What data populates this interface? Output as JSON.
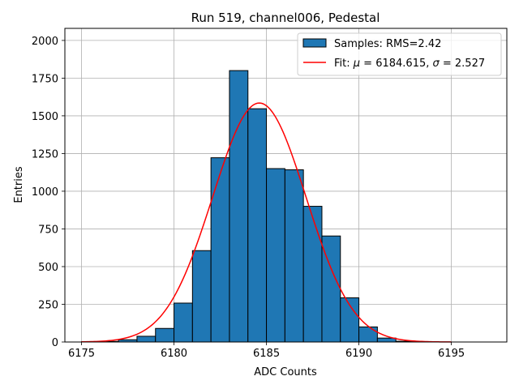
{
  "chart_data": {
    "type": "bar",
    "title": "Run 519, channel006, Pedestal",
    "xlabel": "ADC Counts",
    "ylabel": "Entries",
    "xlim": [
      6174.1,
      6198.0
    ],
    "ylim": [
      0,
      2080
    ],
    "xticks": [
      6175,
      6180,
      6185,
      6190,
      6195
    ],
    "yticks": [
      0,
      250,
      500,
      750,
      1000,
      1250,
      1500,
      1750,
      2000
    ],
    "grid": true,
    "legend_position": "top-right",
    "histogram": {
      "name": "Samples: RMS=2.42",
      "color": "#1f77b4",
      "edge_color": "#000000",
      "bin_edges": [
        6175,
        6176,
        6177,
        6178,
        6179,
        6180,
        6181,
        6182,
        6183,
        6184,
        6185,
        6186,
        6187,
        6188,
        6189,
        6190,
        6191,
        6192,
        6193,
        6194,
        6195
      ],
      "values": [
        2,
        4,
        15,
        38,
        90,
        258,
        606,
        1222,
        1800,
        1547,
        1150,
        1142,
        900,
        703,
        293,
        100,
        26,
        5,
        1,
        0
      ]
    },
    "fit": {
      "name_prefix": "Fit: ",
      "name_mu": "μ",
      "name_mid": " = 6184.615, ",
      "name_sigma": "σ",
      "name_suffix": " = 2.527",
      "color": "#ff0000",
      "mu": 6184.615,
      "sigma": 2.527,
      "amplitude": 1585,
      "x_range": [
        6175,
        6195
      ]
    }
  }
}
